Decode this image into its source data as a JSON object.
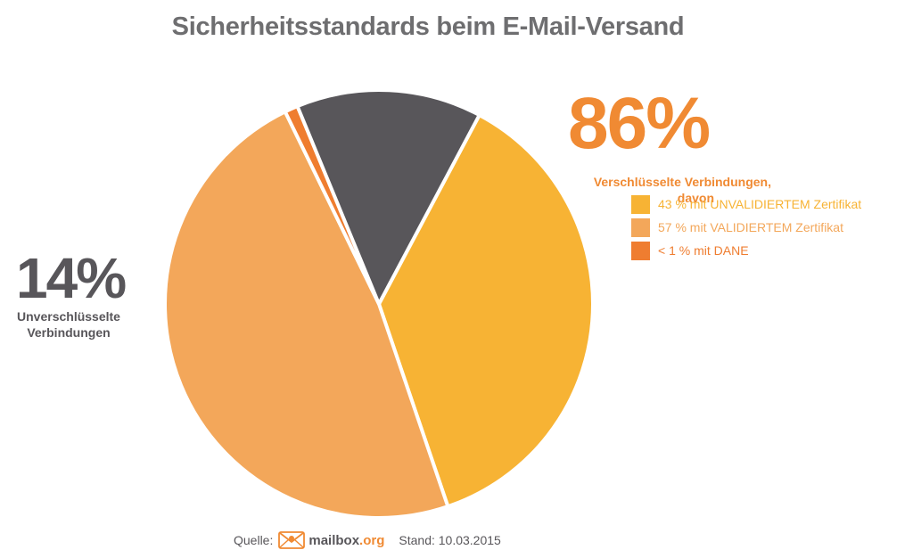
{
  "chart_data": {
    "type": "pie",
    "title": "Sicherheitsstandards beim E-Mail-Versand",
    "slices": [
      {
        "label": "43 % mit UNVALIDIERTEM Zertifikat",
        "value": 37.0,
        "color": "#f7b334"
      },
      {
        "label": "57 % mit VALIDIERTEM Zertifikat",
        "value": 48.0,
        "color": "#f3a75a"
      },
      {
        "label": "< 1 % mit DANE",
        "value": 1.0,
        "color": "#ef7d30"
      },
      {
        "label": "Unverschlüsselte Verbindungen",
        "value": 14.0,
        "color": "#58565a"
      }
    ],
    "start_angle_deg": 62,
    "annotations": {
      "encrypted_pct": "86%",
      "encrypted_caption_line1": "Verschlüsselte Verbindungen,",
      "encrypted_caption_line2": "davon",
      "unencrypted_pct": "14%",
      "unencrypted_caption_line1": "Unverschlüsselte",
      "unencrypted_caption_line2": "Verbindungen"
    },
    "legend": {
      "position": "right",
      "entries": [
        {
          "label": "43 % mit UNVALIDIERTEM Zertifikat",
          "color": "#f7b334"
        },
        {
          "label": "57 % mit VALIDIERTEM Zertifikat",
          "color": "#f3a75a"
        },
        {
          "label": "< 1 % mit DANE",
          "color": "#ef7d30"
        }
      ]
    }
  },
  "footer": {
    "source_label": "Quelle:",
    "brand_name": "mailbox",
    "brand_tld": ".org",
    "date_text": "Stand: 10.03.2015",
    "icon": "envelope-icon"
  }
}
